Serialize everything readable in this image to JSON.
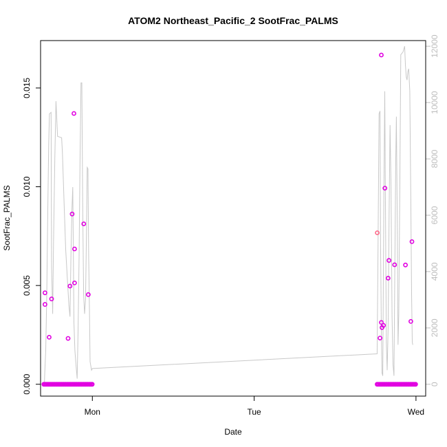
{
  "chart_data": {
    "type": "scatter",
    "title": "ATOM2 Northeast_Pacific_2 SootFrac_PALMS",
    "xlabel": "Date",
    "ylabel": "SootFrac_PALMS",
    "x_tick_labels": [
      "Mon",
      "Tue",
      "Wed"
    ],
    "x_tick_values": [
      1.0,
      2.0,
      3.0
    ],
    "xlim": [
      0.68,
      3.06
    ],
    "ylim": [
      -0.0006,
      0.0174
    ],
    "y_ticks": [
      0.0,
      0.005,
      0.01,
      0.015
    ],
    "y_tick_labels": [
      "0.000",
      "0.005",
      "0.010",
      "0.015"
    ],
    "y2_ticks": [
      0,
      2000,
      4000,
      6000,
      8000,
      10000,
      12000
    ],
    "y2_tick_labels": [
      "0",
      "2000",
      "4000",
      "6000",
      "8000",
      "10000",
      "12000"
    ],
    "y2lim": [
      -420,
      12200
    ],
    "grid": false,
    "colors": {
      "points": "#e100e1",
      "points_alt": "#ff6a8a",
      "line": "#c8c8c8",
      "right_axis": "#bdbdbd",
      "axes": "#000000"
    },
    "series": [
      {
        "values": [
          [
            0.707,
            0.00463
          ],
          [
            0.707,
            0.00404
          ],
          [
            0.733,
            0.00238
          ],
          [
            0.748,
            0.00432
          ],
          [
            0.85,
            0.00232
          ],
          [
            0.862,
            0.00497
          ],
          [
            0.875,
            0.00862
          ],
          [
            0.886,
            0.01371
          ],
          [
            0.89,
            0.00685
          ],
          [
            0.89,
            0.00513
          ],
          [
            0.947,
            0.00812
          ],
          [
            0.975,
            0.00454
          ],
          [
            2.778,
            0.00234
          ],
          [
            2.786,
            0.01667
          ],
          [
            2.786,
            0.00313
          ],
          [
            2.79,
            0.00287
          ],
          [
            2.799,
            0.00298
          ],
          [
            2.808,
            0.00993
          ],
          [
            2.828,
            0.00537
          ],
          [
            2.833,
            0.00627
          ],
          [
            2.868,
            0.00605
          ],
          [
            2.935,
            0.00604
          ],
          [
            2.968,
            0.00318
          ],
          [
            2.975,
            0.00722
          ]
        ]
      },
      {
        "values": [
          [
            2.761,
            0.00767
          ]
        ]
      }
    ],
    "zero_band": [
      {
        "from": 0.7,
        "to": 1.0
      },
      {
        "from": 2.76,
        "to": 3.0
      }
    ],
    "line_series_right_axis": [
      [
        0.704,
        0
      ],
      [
        0.705,
        300
      ],
      [
        0.712,
        1200
      ],
      [
        0.718,
        3000
      ],
      [
        0.724,
        6000
      ],
      [
        0.73,
        8500
      ],
      [
        0.735,
        9600
      ],
      [
        0.745,
        9650
      ],
      [
        0.748,
        4200
      ],
      [
        0.755,
        2500
      ],
      [
        0.76,
        5000
      ],
      [
        0.768,
        8000
      ],
      [
        0.775,
        10050
      ],
      [
        0.785,
        8800
      ],
      [
        0.81,
        8750
      ],
      [
        0.815,
        8200
      ],
      [
        0.825,
        6500
      ],
      [
        0.835,
        4800
      ],
      [
        0.845,
        3800
      ],
      [
        0.855,
        2800
      ],
      [
        0.862,
        2400
      ],
      [
        0.868,
        4600
      ],
      [
        0.874,
        6200
      ],
      [
        0.879,
        7000
      ],
      [
        0.882,
        5200
      ],
      [
        0.886,
        2200
      ],
      [
        0.892,
        1200
      ],
      [
        0.9,
        600
      ],
      [
        0.906,
        200
      ],
      [
        0.912,
        2000
      ],
      [
        0.918,
        4500
      ],
      [
        0.924,
        8000
      ],
      [
        0.93,
        10700
      ],
      [
        0.935,
        10700
      ],
      [
        0.94,
        6500
      ],
      [
        0.946,
        3200
      ],
      [
        0.952,
        2500
      ],
      [
        0.958,
        3000
      ],
      [
        0.964,
        5500
      ],
      [
        0.968,
        7700
      ],
      [
        0.973,
        7650
      ],
      [
        0.977,
        4600
      ],
      [
        0.982,
        2600
      ],
      [
        0.986,
        800
      ],
      [
        0.995,
        500
      ],
      [
        1.0,
        560
      ],
      [
        2.76,
        1080
      ],
      [
        2.765,
        4500
      ],
      [
        2.772,
        9600
      ],
      [
        2.778,
        9700
      ],
      [
        2.781,
        5000
      ],
      [
        2.786,
        2000
      ],
      [
        2.79,
        400
      ],
      [
        2.795,
        300
      ],
      [
        2.798,
        3500
      ],
      [
        2.802,
        7000
      ],
      [
        2.807,
        10400
      ],
      [
        2.812,
        6000
      ],
      [
        2.817,
        1500
      ],
      [
        2.822,
        500
      ],
      [
        2.828,
        2000
      ],
      [
        2.834,
        6000
      ],
      [
        2.84,
        9200
      ],
      [
        2.846,
        7000
      ],
      [
        2.852,
        2400
      ],
      [
        2.858,
        700
      ],
      [
        2.864,
        300
      ],
      [
        2.869,
        4000
      ],
      [
        2.875,
        8000
      ],
      [
        2.879,
        9500
      ],
      [
        2.884,
        6000
      ],
      [
        2.889,
        1400
      ],
      [
        2.894,
        2500
      ],
      [
        2.9,
        7000
      ],
      [
        2.906,
        11700
      ],
      [
        2.92,
        11800
      ],
      [
        2.93,
        12000
      ],
      [
        2.935,
        11300
      ],
      [
        2.94,
        10900
      ],
      [
        2.945,
        10800
      ],
      [
        2.95,
        11100
      ],
      [
        2.955,
        11200
      ],
      [
        2.962,
        10400
      ],
      [
        2.968,
        6500
      ],
      [
        2.973,
        3200
      ],
      [
        2.977,
        1500
      ],
      [
        2.98,
        1400
      ]
    ]
  }
}
